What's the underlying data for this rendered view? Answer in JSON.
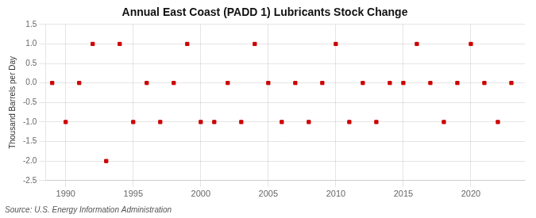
{
  "chart_data": {
    "type": "scatter",
    "title": "Annual East Coast (PADD 1) Lubricants Stock Change",
    "y_label": "Thousand Barrels per Day",
    "annotation": "Source: U.S. Energy Information Administration",
    "x": [
      1989,
      1990,
      1991,
      1992,
      1993,
      1994,
      1995,
      1996,
      1997,
      1998,
      1999,
      2000,
      2001,
      2002,
      2003,
      2004,
      2005,
      2006,
      2007,
      2008,
      2009,
      2010,
      2011,
      2012,
      2013,
      2014,
      2015,
      2016,
      2017,
      2018,
      2019,
      2020,
      2021,
      2022,
      2023
    ],
    "values": [
      0.0,
      -1.0,
      0.0,
      1.0,
      -2.0,
      1.0,
      -1.0,
      0.0,
      -1.0,
      0.0,
      1.0,
      -1.0,
      -1.0,
      0.0,
      -1.0,
      1.0,
      0.0,
      -1.0,
      0.0,
      -1.0,
      0.0,
      1.0,
      -1.0,
      0.0,
      -1.0,
      0.0,
      0.0,
      1.0,
      0.0,
      -1.0,
      0.0,
      1.0,
      0.0,
      -1.0,
      0.0
    ],
    "color": "#cc0000",
    "marker": "square",
    "grid": true,
    "xlim": [
      1988.5,
      2024
    ],
    "xticks": [
      1990,
      1995,
      2000,
      2005,
      2010,
      2015,
      2020
    ],
    "ylim": [
      -2.5,
      1.5
    ],
    "yticks": [
      -2.5,
      {
        "value": -2.0,
        "label": "-2.0"
      },
      -1.5,
      {
        "value": -1.0,
        "label": "-1.0"
      },
      -0.5,
      {
        "value": 0.0,
        "label": "0.0"
      },
      0.5,
      {
        "value": 1.0,
        "label": "1.0"
      },
      1.5
    ]
  }
}
